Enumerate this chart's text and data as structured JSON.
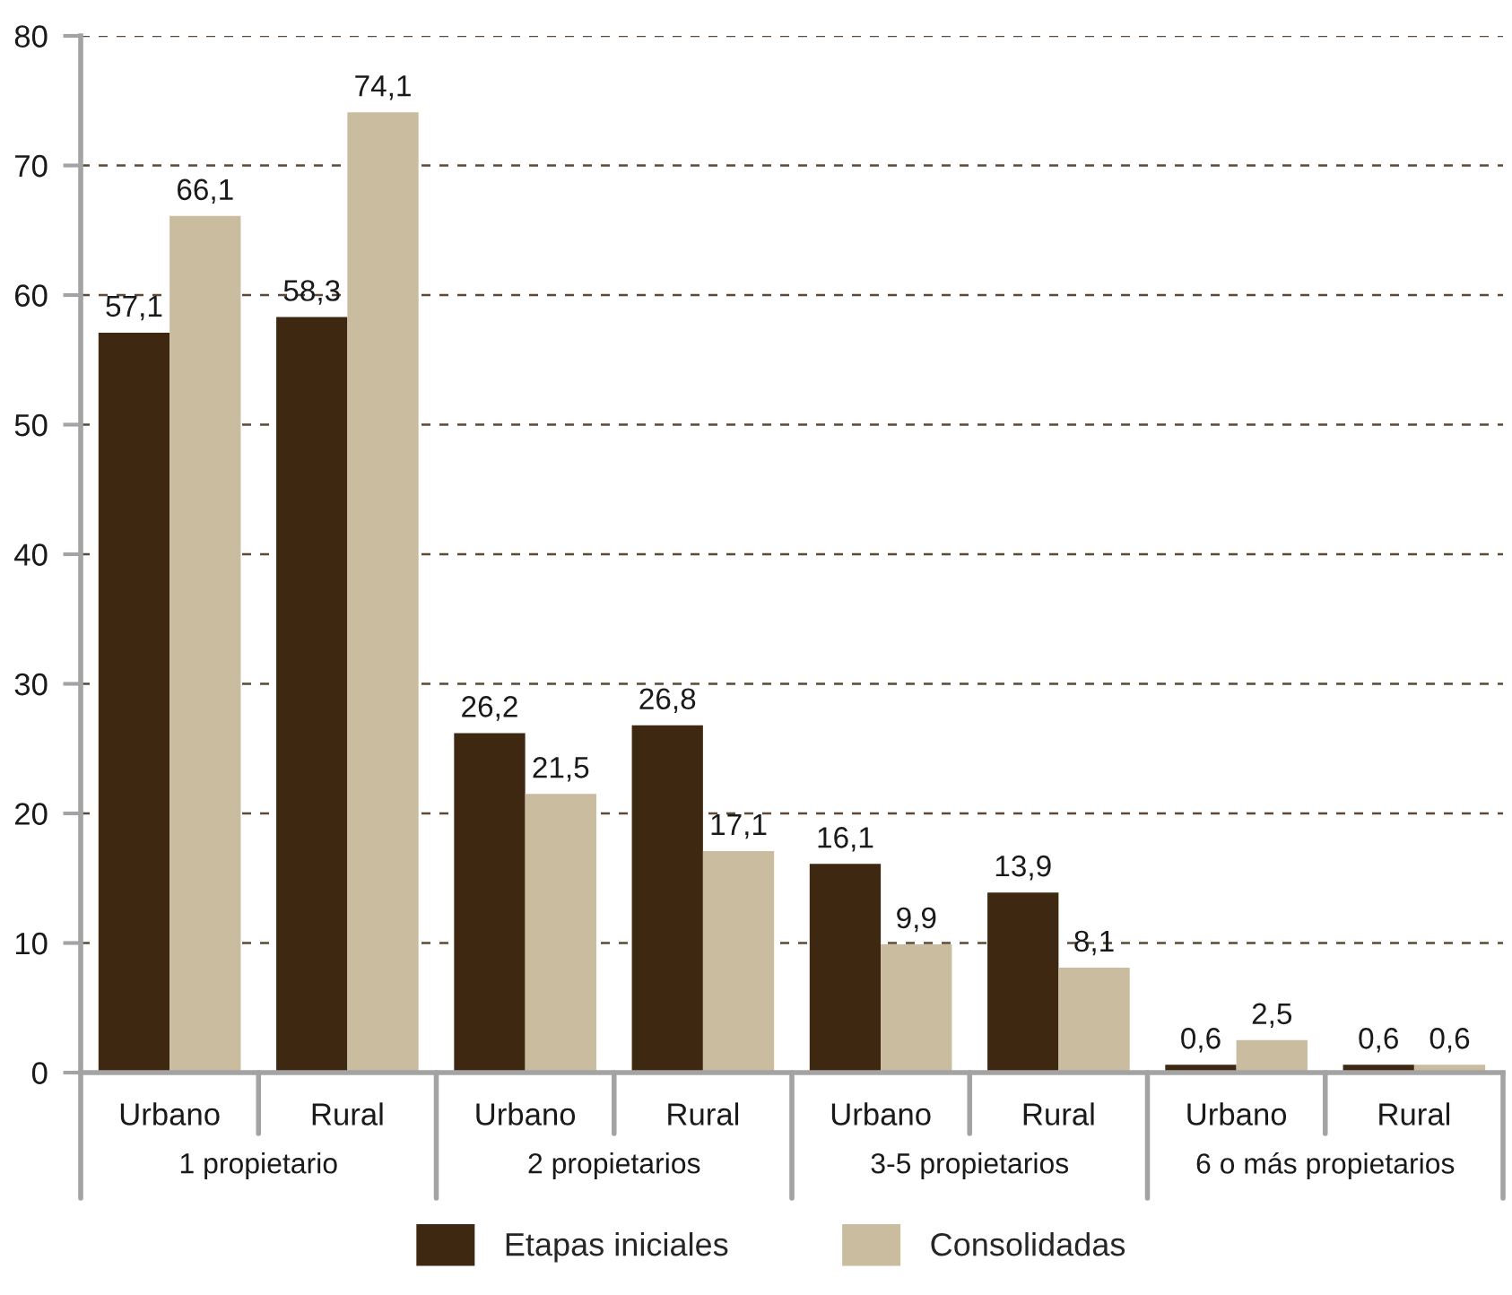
{
  "chart_data": {
    "type": "bar",
    "categories": [
      "Urbano",
      "Rural",
      "Urbano",
      "Rural",
      "Urbano",
      "Rural",
      "Urbano",
      "Rural"
    ],
    "annotations": [
      "1 propietario",
      "2 propietarios",
      "3-5 propietarios",
      "6 o más propietarios"
    ],
    "series": [
      {
        "name": "Etapas iniciales",
        "color": "#3f2812",
        "values": [
          57.1,
          58.3,
          26.2,
          26.8,
          16.1,
          13.9,
          0.6,
          0.6
        ],
        "value_labels": [
          "57,1",
          "58,3",
          "26,2",
          "26,8",
          "16,1",
          "13,9",
          "0,6",
          "0,6"
        ]
      },
      {
        "name": "Consolidadas",
        "color": "#c9bc9f",
        "values": [
          66.1,
          74.1,
          21.5,
          17.1,
          9.9,
          8.1,
          2.5,
          0.6
        ],
        "value_labels": [
          "66,1",
          "74,1",
          "21,5",
          "17,1",
          "9,9",
          "8,1",
          "2,5",
          "0,6"
        ]
      }
    ],
    "ylim": [
      0,
      80
    ],
    "yticks": [
      0,
      10,
      20,
      30,
      40,
      50,
      60,
      70,
      80
    ],
    "grid": "y",
    "legend": "bottom"
  }
}
